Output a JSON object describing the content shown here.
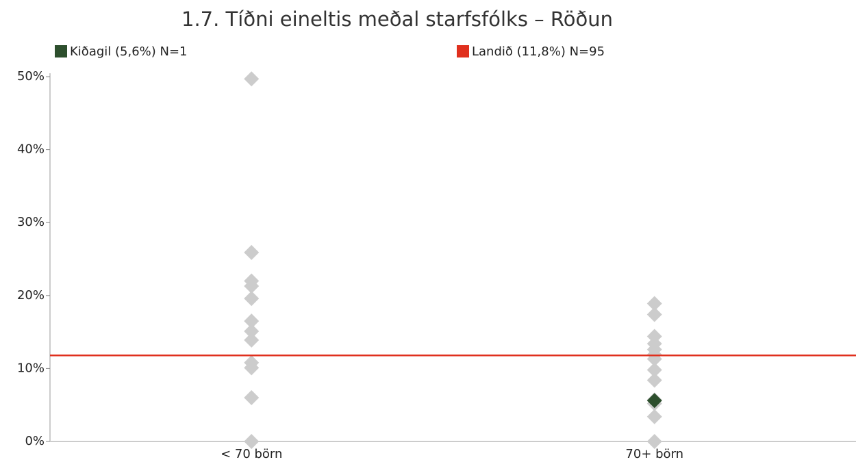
{
  "chart_data": {
    "type": "strip",
    "title": "1.7. Tíðni eineltis meðal starfsfólks – Röðun",
    "categories": [
      "< 70 börn",
      "70+ börn"
    ],
    "points": [
      [
        49.7,
        25.9,
        22.0,
        21.3,
        19.6,
        16.5,
        15.1,
        13.9,
        10.8,
        10.1,
        6.0,
        0
      ],
      [
        18.9,
        17.4,
        14.4,
        13.4,
        12.6,
        11.9,
        11.3,
        9.8,
        8.4,
        5.7,
        5.2,
        3.4,
        0
      ]
    ],
    "points_color": "#cccccc",
    "series": [
      {
        "name": "Kiðagil (5,6%) N=1",
        "color": "#2d4f2d",
        "values": [
          null,
          5.6
        ]
      }
    ],
    "reference": {
      "name": "Landið (11,8%) N=95",
      "color": "#e0301e",
      "value": 11.8
    },
    "ylim": [
      0,
      50
    ],
    "yticks": [
      {
        "value": 0,
        "label": "0%"
      },
      {
        "value": 10,
        "label": "10%"
      },
      {
        "value": 20,
        "label": "20%"
      },
      {
        "value": 30,
        "label": "30%"
      },
      {
        "value": 40,
        "label": "40%"
      },
      {
        "value": 50,
        "label": "50%"
      }
    ]
  }
}
